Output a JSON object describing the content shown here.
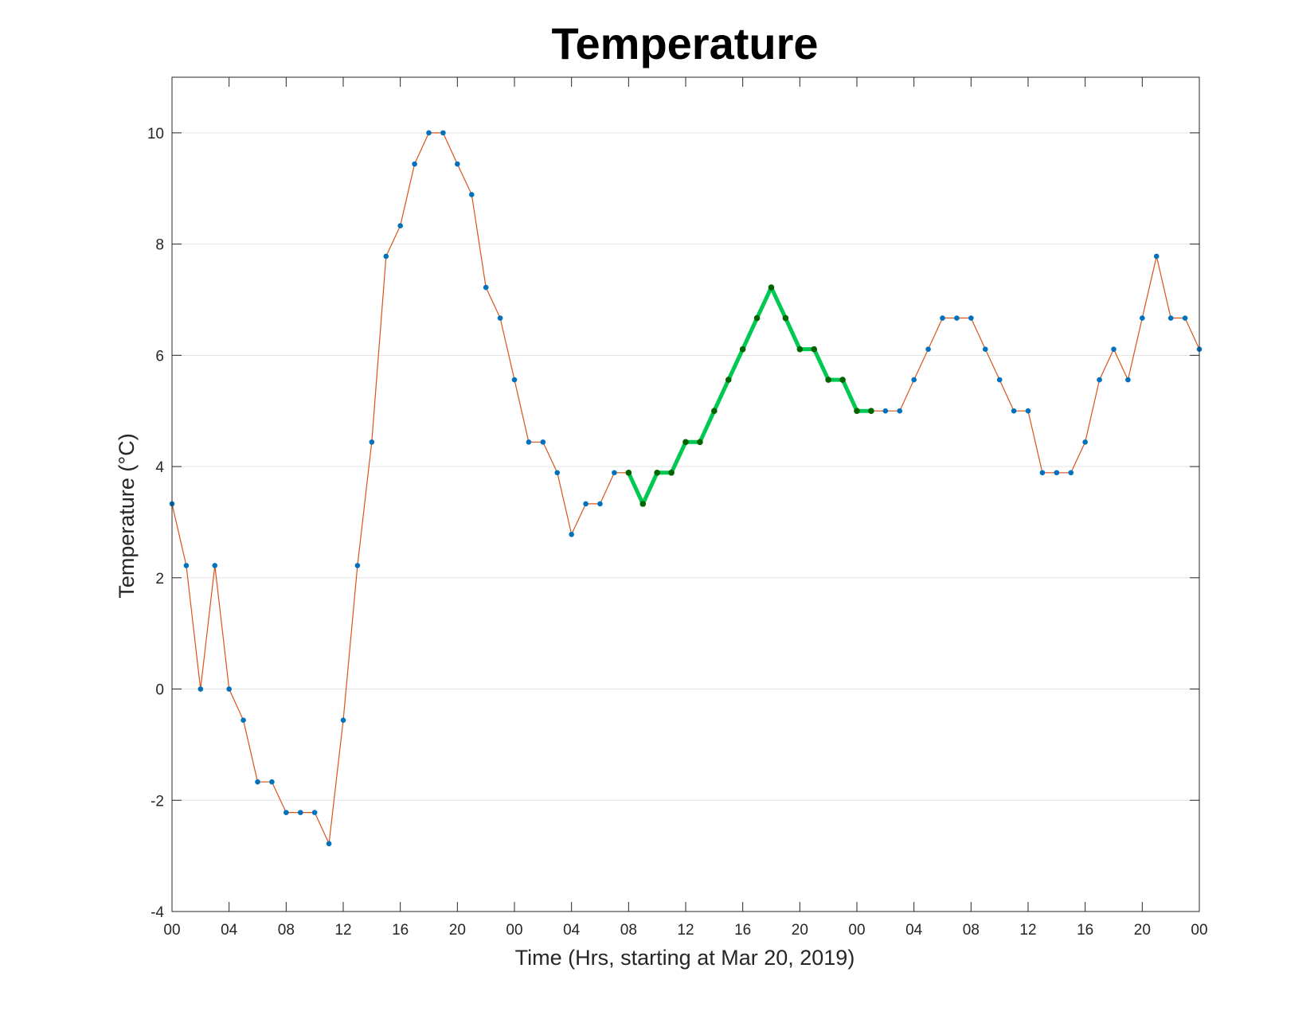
{
  "chart_data": {
    "type": "line",
    "title": "Temperature",
    "xlabel": "Time (Hrs, starting at Mar 20, 2019)",
    "ylabel": "Temperature (°C)",
    "x_unit": "hours",
    "xlim": [
      0,
      72
    ],
    "ylim": [
      -4,
      11
    ],
    "y_ticks": [
      -4,
      -2,
      0,
      2,
      4,
      6,
      8,
      10
    ],
    "x_tick_hours": [
      0,
      4,
      8,
      12,
      16,
      20,
      24,
      28,
      32,
      36,
      40,
      44,
      48,
      52,
      56,
      60,
      64,
      68,
      72
    ],
    "x_tick_labels": [
      "00",
      "04",
      "08",
      "12",
      "16",
      "20",
      "00",
      "04",
      "08",
      "12",
      "16",
      "20",
      "00",
      "04",
      "08",
      "12",
      "16",
      "20",
      "00"
    ],
    "grid": "horizontal",
    "legend": "none",
    "series": [
      {
        "line_color": "#D95319",
        "marker_color": "#0072BD",
        "x": [
          0,
          1,
          2,
          3,
          4,
          5,
          6,
          7,
          8,
          9,
          10,
          11,
          12,
          13,
          14,
          15,
          16,
          17,
          18,
          19,
          20,
          21,
          22,
          23,
          24,
          25,
          26,
          27,
          28,
          29,
          30,
          31,
          32,
          33,
          34,
          35,
          36,
          37,
          38,
          39,
          40,
          41,
          42,
          43,
          44,
          45,
          46,
          47,
          48,
          49,
          50,
          51,
          52,
          53,
          54,
          55,
          56,
          57,
          58,
          59,
          60,
          61,
          62,
          63,
          64,
          65,
          66,
          67,
          68,
          69,
          70,
          71,
          72
        ],
        "values": [
          3.33,
          2.22,
          0.0,
          2.22,
          0.0,
          -0.56,
          -1.67,
          -1.67,
          -2.22,
          -2.22,
          -2.22,
          -2.78,
          -0.56,
          2.22,
          4.44,
          7.78,
          8.33,
          9.44,
          10.0,
          10.0,
          9.44,
          8.89,
          7.22,
          6.67,
          5.56,
          4.44,
          4.44,
          3.89,
          2.78,
          3.33,
          3.33,
          3.89,
          3.89,
          3.33,
          3.89,
          3.89,
          4.44,
          4.44,
          5.0,
          5.56,
          6.11,
          6.67,
          7.22,
          6.67,
          6.11,
          6.11,
          5.56,
          5.56,
          5.0,
          5.0,
          5.0,
          5.0,
          5.56,
          6.11,
          6.67,
          6.67,
          6.67,
          6.11,
          5.56,
          5.0,
          5.0,
          3.89,
          3.89,
          3.89,
          4.44,
          5.56,
          6.11,
          5.56,
          6.67,
          7.78,
          6.67,
          6.67,
          6.11
        ]
      },
      {
        "line_color": "#00C853",
        "marker_color": "#006400",
        "x": [
          32,
          33,
          34,
          35,
          36,
          37,
          38,
          39,
          40,
          41,
          42,
          43,
          44,
          45,
          46,
          47,
          48,
          49
        ],
        "values": [
          3.89,
          3.33,
          3.89,
          3.89,
          4.44,
          4.44,
          5.0,
          5.56,
          6.11,
          6.67,
          7.22,
          6.67,
          6.11,
          6.11,
          5.56,
          5.56,
          5.0,
          5.0
        ]
      }
    ]
  }
}
